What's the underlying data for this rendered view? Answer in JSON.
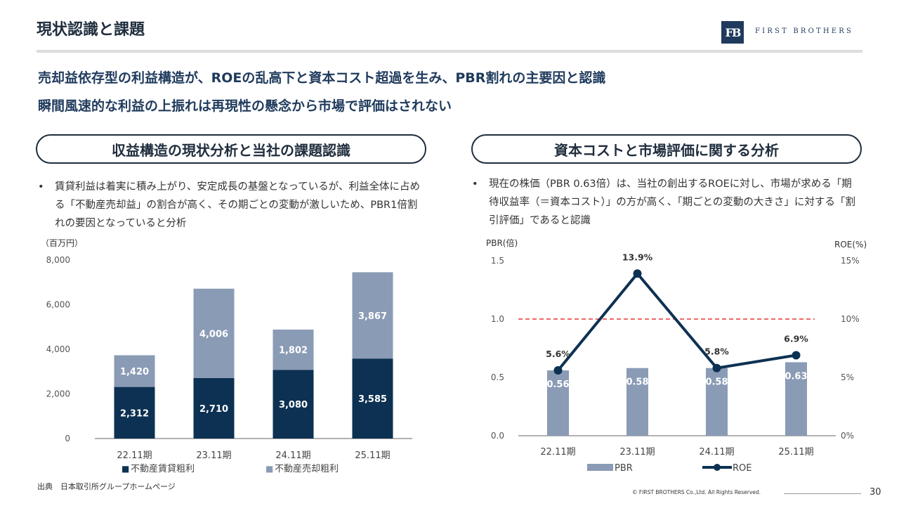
{
  "header": {
    "title": "現状認識と課題",
    "logo_monogram": "FB",
    "logo_text": "FIRST BROTHERS"
  },
  "headlines": [
    "売却益依存型の利益構造が、ROEの乱高下と資本コスト超過を生み、PBR割れの主要因と認識",
    "瞬間風速的な利益の上振れは再現性の懸念から市場で評価はされない"
  ],
  "left_section": {
    "title": "収益構造の現状分析と当社の課題認識",
    "bullet_marker": "•",
    "bullet": "賃貸利益は着実に積み上がり、安定成長の基盤となっているが、利益全体に占める「不動産売却益」の割合が高く、その期ごとの変動が激しいため、PBR1倍割れの要因となっていると分析"
  },
  "right_section": {
    "title": "資本コストと市場評価に関する分析",
    "bullet_marker": "•",
    "bullet": "現在の株価（PBR 0.63倍）は、当社の創出するROEに対し、市場が求める「期待収益率（＝資本コスト）」の方が高く、「期ごとの変動の大きさ」に対する「割引評価」であると認識"
  },
  "chart_data": [
    {
      "type": "bar",
      "stacked": true,
      "unit_label": "（百万円）",
      "categories": [
        "22.11期",
        "23.11期",
        "24.11期",
        "25.11期"
      ],
      "ylim": [
        0,
        8000
      ],
      "yticks": [
        "0",
        "2,000",
        "4,000",
        "6,000",
        "8,000"
      ],
      "ytick_values": [
        0,
        2000,
        4000,
        6000,
        8000
      ],
      "series": [
        {
          "name": "不動産賃貸粗利",
          "color": "#0d3152",
          "values": [
            2312,
            2710,
            3080,
            3585
          ],
          "labels": [
            "2,312",
            "2,710",
            "3,080",
            "3,585"
          ]
        },
        {
          "name": "不動産売却粗利",
          "color": "#8a9bb5",
          "values": [
            1420,
            4006,
            1802,
            3867
          ],
          "labels": [
            "1,420",
            "4,006",
            "1,802",
            "3,867"
          ]
        }
      ],
      "legend_marker": "■",
      "legend_position": "bottom",
      "grid": false
    },
    {
      "type": "bar+line",
      "categories": [
        "22.11期",
        "23.11期",
        "24.11期",
        "25.11期"
      ],
      "y_left_label": "PBR(倍)",
      "y_right_label": "ROE(%)",
      "ylim_left": [
        0,
        1.5
      ],
      "ylim_right": [
        0,
        15
      ],
      "yticks_left": [
        "0.0",
        "0.5",
        "1.0",
        "1.5"
      ],
      "yticks_left_values": [
        0,
        0.5,
        1.0,
        1.5
      ],
      "yticks_right": [
        "0%",
        "5%",
        "10%",
        "15%"
      ],
      "yticks_right_values": [
        0,
        5,
        10,
        15
      ],
      "series": [
        {
          "name": "PBR",
          "kind": "bar",
          "axis": "left",
          "color": "#8a9bb5",
          "values": [
            0.56,
            0.58,
            0.58,
            0.63
          ],
          "labels": [
            "0.56",
            "0.58",
            "0.58",
            "0.63"
          ]
        },
        {
          "name": "ROE",
          "kind": "line",
          "axis": "right",
          "color": "#0d3152",
          "values": [
            5.6,
            13.9,
            5.8,
            6.9
          ],
          "labels": [
            "5.6%",
            "13.9%",
            "5.8%",
            "6.9%"
          ]
        }
      ],
      "reference_line": {
        "axis": "left",
        "value": 1.0,
        "color": "#e53935",
        "style": "dashed"
      },
      "legend_position": "bottom",
      "grid": false
    }
  ],
  "footer": {
    "source": "出典　日本取引所グループホームページ",
    "copyright": "© FIRST BROTHERS Co.,Ltd. All Rights Reserved.",
    "page_number": "30"
  }
}
